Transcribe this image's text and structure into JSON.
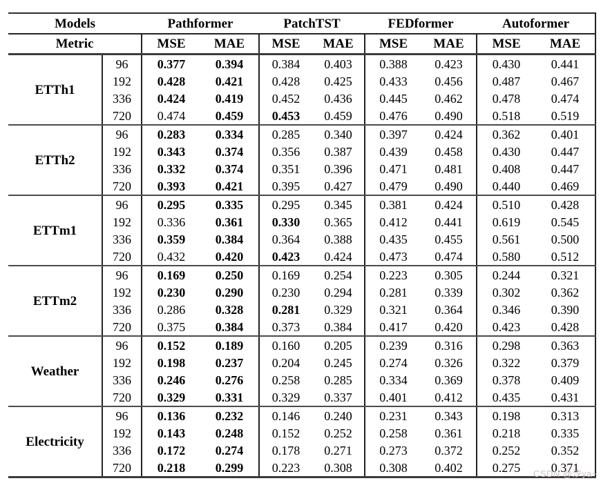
{
  "page": {
    "background": "#ffffff",
    "text_color": "#000000",
    "rule_color": "#2e2e2e",
    "watermark_color": "#ccc1bf"
  },
  "watermark": {
    "text": "CSDN @汐ya~"
  },
  "table": {
    "header": {
      "models_label": "Models",
      "metric_label": "Metric",
      "model_columns": [
        "Pathformer",
        "PatchTST",
        "FEDformer",
        "Autoformer"
      ],
      "metric_pair": [
        "MSE",
        "MAE"
      ]
    },
    "value_column_order": [
      "Pathformer MSE",
      "Pathformer MAE",
      "PatchTST MSE",
      "PatchTST MAE",
      "FEDformer MSE",
      "FEDformer MAE",
      "Autoformer MSE",
      "Autoformer MAE"
    ],
    "groups": [
      {
        "dataset": "ETTh1",
        "rows": [
          {
            "horizon": "96",
            "values": [
              "0.377",
              "0.394",
              "0.384",
              "0.403",
              "0.388",
              "0.423",
              "0.430",
              "0.441"
            ],
            "bold": [
              1,
              1,
              0,
              0,
              0,
              0,
              0,
              0
            ]
          },
          {
            "horizon": "192",
            "values": [
              "0.428",
              "0.421",
              "0.428",
              "0.425",
              "0.433",
              "0.456",
              "0.487",
              "0.467"
            ],
            "bold": [
              1,
              1,
              0,
              0,
              0,
              0,
              0,
              0
            ]
          },
          {
            "horizon": "336",
            "values": [
              "0.424",
              "0.419",
              "0.452",
              "0.436",
              "0.445",
              "0.462",
              "0.478",
              "0.474"
            ],
            "bold": [
              1,
              1,
              0,
              0,
              0,
              0,
              0,
              0
            ]
          },
          {
            "horizon": "720",
            "values": [
              "0.474",
              "0.459",
              "0.453",
              "0.459",
              "0.476",
              "0.490",
              "0.518",
              "0.519"
            ],
            "bold": [
              0,
              1,
              1,
              0,
              0,
              0,
              0,
              0
            ]
          }
        ]
      },
      {
        "dataset": "ETTh2",
        "rows": [
          {
            "horizon": "96",
            "values": [
              "0.283",
              "0.334",
              "0.285",
              "0.340",
              "0.397",
              "0.424",
              "0.362",
              "0.401"
            ],
            "bold": [
              1,
              1,
              0,
              0,
              0,
              0,
              0,
              0
            ]
          },
          {
            "horizon": "192",
            "values": [
              "0.343",
              "0.374",
              "0.356",
              "0.387",
              "0.439",
              "0.458",
              "0.430",
              "0.447"
            ],
            "bold": [
              1,
              1,
              0,
              0,
              0,
              0,
              0,
              0
            ]
          },
          {
            "horizon": "336",
            "values": [
              "0.332",
              "0.374",
              "0.351",
              "0.396",
              "0.471",
              "0.481",
              "0.408",
              "0.447"
            ],
            "bold": [
              1,
              1,
              0,
              0,
              0,
              0,
              0,
              0
            ]
          },
          {
            "horizon": "720",
            "values": [
              "0.393",
              "0.421",
              "0.395",
              "0.427",
              "0.479",
              "0.490",
              "0.440",
              "0.469"
            ],
            "bold": [
              1,
              1,
              0,
              0,
              0,
              0,
              0,
              0
            ]
          }
        ]
      },
      {
        "dataset": "ETTm1",
        "rows": [
          {
            "horizon": "96",
            "values": [
              "0.295",
              "0.335",
              "0.295",
              "0.345",
              "0.381",
              "0.424",
              "0.510",
              "0.428"
            ],
            "bold": [
              1,
              1,
              0,
              0,
              0,
              0,
              0,
              0
            ]
          },
          {
            "horizon": "192",
            "values": [
              "0.336",
              "0.361",
              "0.330",
              "0.365",
              "0.412",
              "0.441",
              "0.619",
              "0.545"
            ],
            "bold": [
              0,
              1,
              1,
              0,
              0,
              0,
              0,
              0
            ]
          },
          {
            "horizon": "336",
            "values": [
              "0.359",
              "0.384",
              "0.364",
              "0.388",
              "0.435",
              "0.455",
              "0.561",
              "0.500"
            ],
            "bold": [
              1,
              1,
              0,
              0,
              0,
              0,
              0,
              0
            ]
          },
          {
            "horizon": "720",
            "values": [
              "0.432",
              "0.420",
              "0.423",
              "0.424",
              "0.473",
              "0.474",
              "0.580",
              "0.512"
            ],
            "bold": [
              0,
              1,
              1,
              0,
              0,
              0,
              0,
              0
            ]
          }
        ]
      },
      {
        "dataset": "ETTm2",
        "rows": [
          {
            "horizon": "96",
            "values": [
              "0.169",
              "0.250",
              "0.169",
              "0.254",
              "0.223",
              "0.305",
              "0.244",
              "0.321"
            ],
            "bold": [
              1,
              1,
              0,
              0,
              0,
              0,
              0,
              0
            ]
          },
          {
            "horizon": "192",
            "values": [
              "0.230",
              "0.290",
              "0.230",
              "0.294",
              "0.281",
              "0.339",
              "0.302",
              "0.362"
            ],
            "bold": [
              1,
              1,
              0,
              0,
              0,
              0,
              0,
              0
            ]
          },
          {
            "horizon": "336",
            "values": [
              "0.286",
              "0.328",
              "0.281",
              "0.329",
              "0.321",
              "0.364",
              "0.346",
              "0.390"
            ],
            "bold": [
              0,
              1,
              1,
              0,
              0,
              0,
              0,
              0
            ]
          },
          {
            "horizon": "720",
            "values": [
              "0.375",
              "0.384",
              "0.373",
              "0.384",
              "0.417",
              "0.420",
              "0.423",
              "0.428"
            ],
            "bold": [
              0,
              1,
              0,
              0,
              0,
              0,
              0,
              0
            ]
          }
        ]
      },
      {
        "dataset": "Weather",
        "rows": [
          {
            "horizon": "96",
            "values": [
              "0.152",
              "0.189",
              "0.160",
              "0.205",
              "0.239",
              "0.316",
              "0.298",
              "0.363"
            ],
            "bold": [
              1,
              1,
              0,
              0,
              0,
              0,
              0,
              0
            ]
          },
          {
            "horizon": "192",
            "values": [
              "0.198",
              "0.237",
              "0.204",
              "0.245",
              "0.274",
              "0.326",
              "0.322",
              "0.379"
            ],
            "bold": [
              1,
              1,
              0,
              0,
              0,
              0,
              0,
              0
            ]
          },
          {
            "horizon": "336",
            "values": [
              "0.246",
              "0.276",
              "0.258",
              "0.285",
              "0.334",
              "0.369",
              "0.378",
              "0.409"
            ],
            "bold": [
              1,
              1,
              0,
              0,
              0,
              0,
              0,
              0
            ]
          },
          {
            "horizon": "720",
            "values": [
              "0.329",
              "0.331",
              "0.329",
              "0.337",
              "0.401",
              "0.412",
              "0.435",
              "0.431"
            ],
            "bold": [
              1,
              1,
              0,
              0,
              0,
              0,
              0,
              0
            ]
          }
        ]
      },
      {
        "dataset": "Electricity",
        "rows": [
          {
            "horizon": "96",
            "values": [
              "0.136",
              "0.232",
              "0.146",
              "0.240",
              "0.231",
              "0.343",
              "0.198",
              "0.313"
            ],
            "bold": [
              1,
              1,
              0,
              0,
              0,
              0,
              0,
              0
            ]
          },
          {
            "horizon": "192",
            "values": [
              "0.143",
              "0.248",
              "0.152",
              "0.252",
              "0.258",
              "0.361",
              "0.218",
              "0.335"
            ],
            "bold": [
              1,
              1,
              0,
              0,
              0,
              0,
              0,
              0
            ]
          },
          {
            "horizon": "336",
            "values": [
              "0.172",
              "0.274",
              "0.178",
              "0.271",
              "0.273",
              "0.372",
              "0.252",
              "0.352"
            ],
            "bold": [
              1,
              1,
              0,
              0,
              0,
              0,
              0,
              0
            ]
          },
          {
            "horizon": "720",
            "values": [
              "0.218",
              "0.299",
              "0.223",
              "0.308",
              "0.308",
              "0.402",
              "0.275",
              "0.371"
            ],
            "bold": [
              1,
              1,
              0,
              0,
              0,
              0,
              0,
              0
            ]
          }
        ]
      }
    ]
  }
}
